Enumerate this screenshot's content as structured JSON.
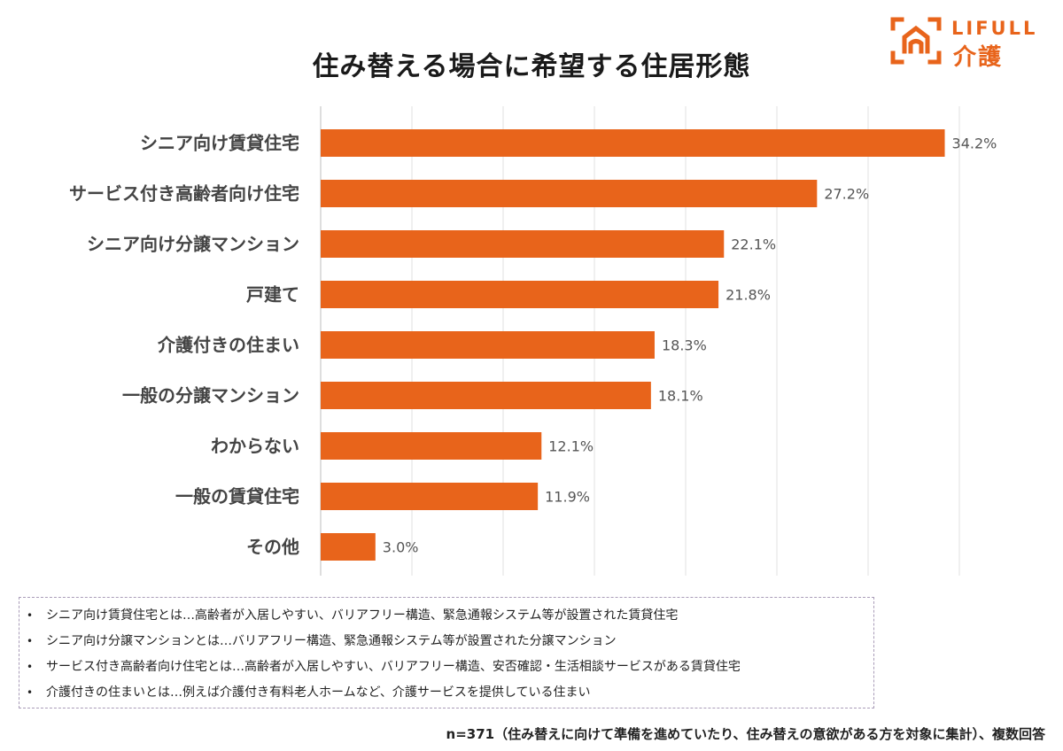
{
  "chart_data": {
    "type": "bar",
    "orientation": "horizontal",
    "title": "住み替える場合に希望する住居形態",
    "categories": [
      "シニア向け賃貸住宅",
      "サービス付き高齢者向け住宅",
      "シニア向け分譲マンション",
      "戸建て",
      "介護付きの住まい",
      "一般の分譲マンション",
      "わからない",
      "一般の賃貸住宅",
      "その他"
    ],
    "values": [
      34.2,
      27.2,
      22.1,
      21.8,
      18.3,
      18.1,
      12.1,
      11.9,
      3.0
    ],
    "value_labels": [
      "34.2%",
      "27.2%",
      "22.1%",
      "21.8%",
      "18.3%",
      "18.1%",
      "12.1%",
      "11.9%",
      "3.0%"
    ],
    "xlim": [
      0,
      35
    ],
    "grid": "vertical",
    "bar_color": "#E8641B"
  },
  "logo": {
    "name": "LIFULL",
    "sub": "介護",
    "color": "#E8641B"
  },
  "notes": [
    "シニア向け賃貸住宅とは…高齢者が入居しやすい、バリアフリー構造、緊急通報システム等が設置された賃貸住宅",
    "シニア向け分譲マンションとは…バリアフリー構造、緊急通報システム等が設置された分譲マンション",
    "サービス付き高齢者向け住宅とは…高齢者が入居しやすい、バリアフリー構造、安否確認・生活相談サービスがある賃貸住宅",
    "介護付きの住まいとは…例えば介護付き有料老人ホームなど、介護サービスを提供している住まい"
  ],
  "note_bullet": "•",
  "footnote": "n=371（住み替えに向けて準備を進めていたり、住み替えの意欲がある方を対象に集計）、複数回答"
}
